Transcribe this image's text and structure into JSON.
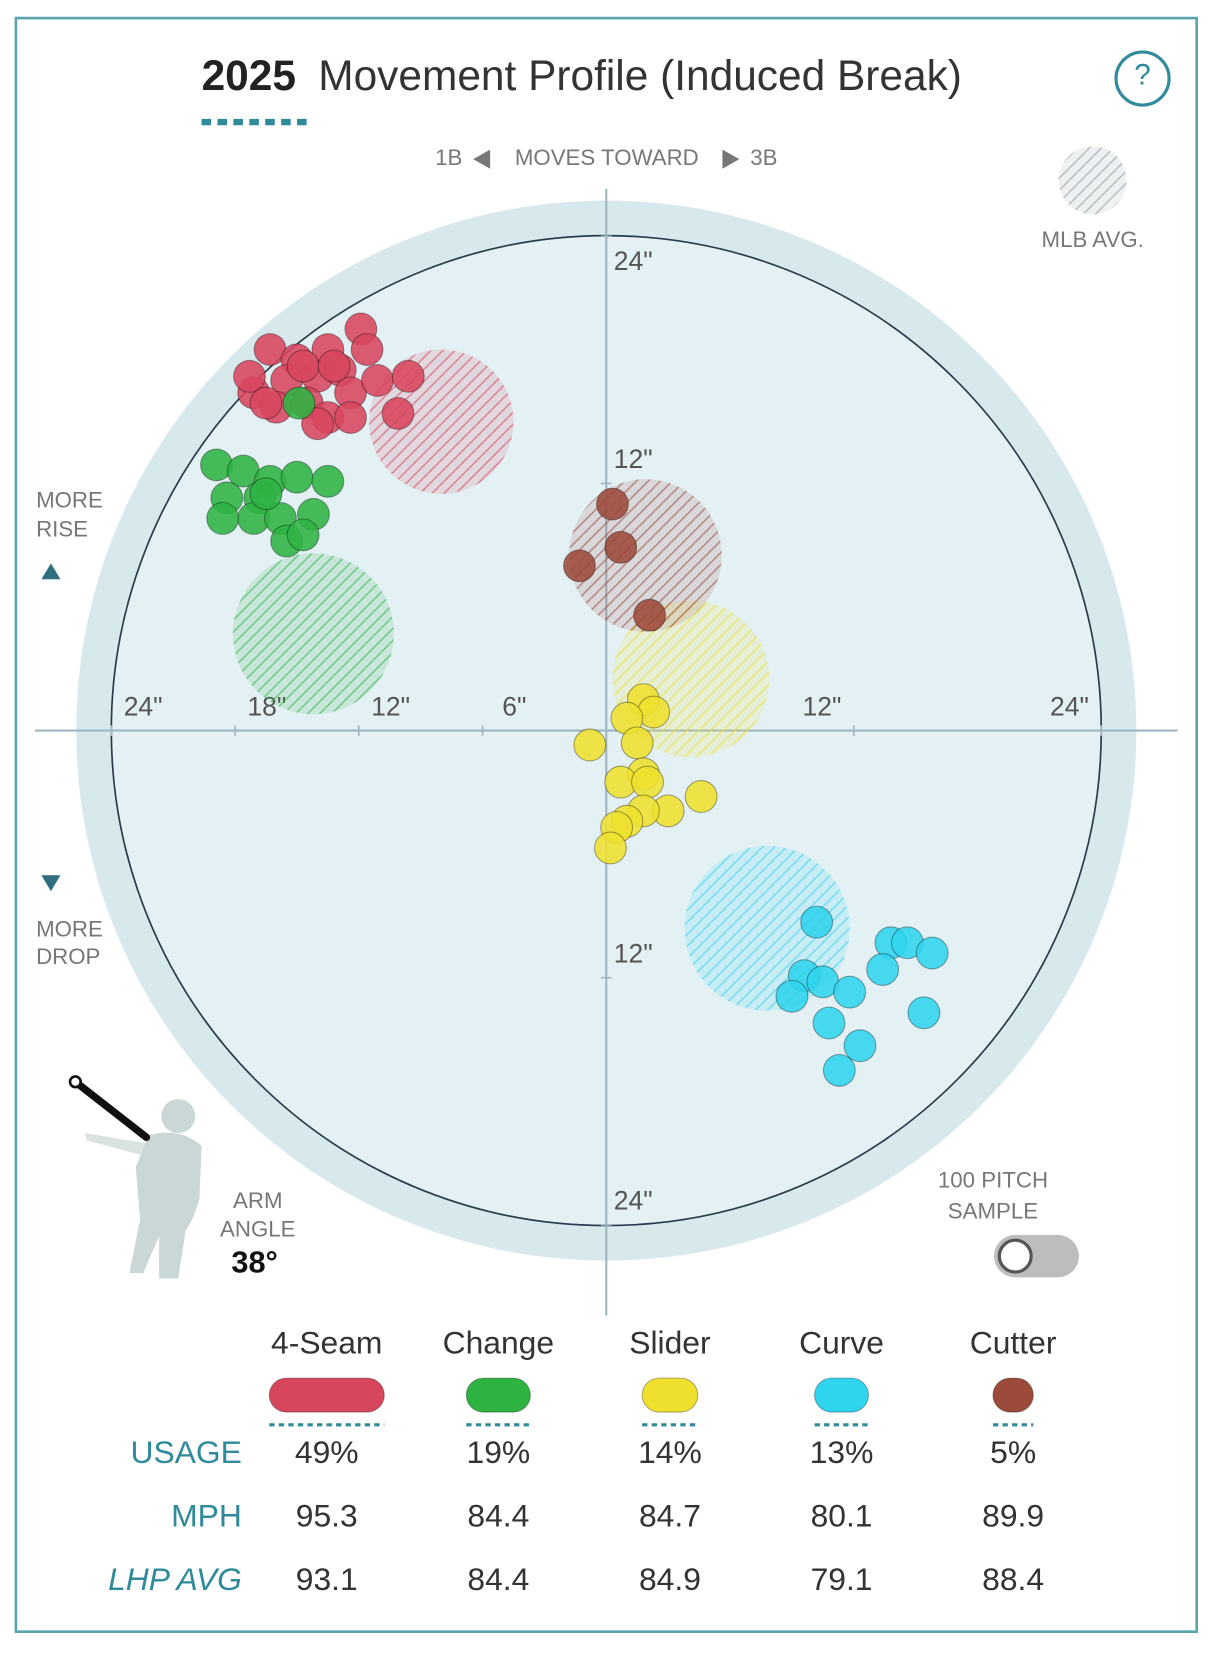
{
  "header": {
    "title_year": "2025",
    "title": "Movement Profile (Induced Break)",
    "help": "?"
  },
  "chart_data": {
    "type": "scatter",
    "direction_left": "1B",
    "direction_label": "MOVES TOWARD",
    "direction_right": "3B",
    "mlb_avg_label": "MLB AVG.",
    "rise_label": [
      "MORE",
      "RISE"
    ],
    "drop_label": [
      "MORE",
      "DROP"
    ],
    "xlim": [
      -27.7,
      27.7
    ],
    "ylim": [
      -28.4,
      26.3
    ],
    "field_radius": 25.7,
    "rings": [
      {
        "radius": 6,
        "dashed": true
      },
      {
        "radius": 12,
        "dashed": false
      },
      {
        "radius": 18,
        "dashed": true
      },
      {
        "radius": 24,
        "dashed": false
      }
    ],
    "xticks": [
      {
        "value": -24,
        "label": "24\""
      },
      {
        "value": -18,
        "label": "18\""
      },
      {
        "value": -12,
        "label": "12\""
      },
      {
        "value": -6,
        "label": "6\""
      },
      {
        "value": 12,
        "label": "12\""
      },
      {
        "value": 24,
        "label": "24\""
      }
    ],
    "yticks": [
      {
        "value": 24,
        "label": "24\""
      },
      {
        "value": 12,
        "label": "12\""
      },
      {
        "value": -12,
        "label": "12\""
      },
      {
        "value": -24,
        "label": "24\""
      }
    ],
    "series": [
      {
        "name": "4-Seam",
        "color": "#d8465e",
        "x": [
          -16.3,
          -15.0,
          -13.5,
          -11.9,
          -11.6,
          -14.0,
          -15.5,
          -17.1,
          -17.3,
          -16.0,
          -14.5,
          -12.9,
          -12.4,
          -13.5,
          -12.4,
          -11.1,
          -9.6,
          -10.1,
          -14.0,
          -16.5,
          -14.7,
          -13.2
        ],
        "y": [
          18.5,
          18.0,
          18.5,
          19.5,
          18.5,
          17.2,
          17.0,
          16.4,
          17.2,
          15.7,
          15.9,
          17.5,
          16.4,
          15.2,
          15.2,
          17.0,
          17.2,
          15.4,
          14.9,
          15.9,
          17.7,
          17.7
        ],
        "mlb_avg": {
          "x": -8.0,
          "y": 15.0,
          "r": 3.5
        }
      },
      {
        "name": "Change",
        "color": "#2db342",
        "x": [
          -18.9,
          -17.6,
          -16.3,
          -15.0,
          -13.5,
          -16.8,
          -18.4,
          -17.1,
          -15.8,
          -14.2,
          -18.6,
          -15.5,
          -14.7,
          -16.5,
          -14.9
        ],
        "y": [
          12.9,
          12.6,
          12.1,
          12.3,
          12.1,
          11.3,
          11.3,
          10.3,
          10.3,
          10.5,
          10.3,
          9.2,
          9.5,
          11.5,
          15.9
        ],
        "mlb_avg": {
          "x": -14.2,
          "y": 4.7,
          "r": 3.9
        }
      },
      {
        "name": "Slider",
        "color": "#efe02e",
        "x": [
          1.8,
          2.3,
          1.0,
          -0.8,
          1.5,
          1.8,
          0.7,
          2.0,
          4.6,
          3.0,
          1.8,
          1.0,
          0.5,
          0.2
        ],
        "y": [
          1.5,
          0.9,
          0.6,
          -0.7,
          -0.6,
          -2.1,
          -2.5,
          -2.5,
          -3.2,
          -3.9,
          -3.9,
          -4.4,
          -4.7,
          -5.7
        ],
        "mlb_avg": {
          "x": 4.1,
          "y": 2.5,
          "r": 3.8
        }
      },
      {
        "name": "Curve",
        "color": "#2fd4ee",
        "x": [
          10.2,
          13.8,
          14.6,
          15.8,
          13.4,
          9.6,
          10.5,
          9.0,
          11.8,
          15.4,
          10.8,
          12.3,
          11.3
        ],
        "y": [
          -9.3,
          -10.3,
          -10.3,
          -10.8,
          -11.6,
          -11.9,
          -12.2,
          -12.9,
          -12.7,
          -13.7,
          -14.2,
          -15.3,
          -16.5
        ],
        "mlb_avg": {
          "x": 7.8,
          "y": -9.6,
          "r": 4.0
        }
      },
      {
        "name": "Cutter",
        "color": "#9c4a3a",
        "x": [
          0.3,
          0.7,
          -1.3,
          2.1
        ],
        "y": [
          11.0,
          8.9,
          8.0,
          5.6
        ],
        "mlb_avg": {
          "x": 1.9,
          "y": 8.5,
          "r": 3.7
        }
      }
    ],
    "arm_angle": {
      "label": [
        "ARM",
        "ANGLE"
      ],
      "value": 38,
      "value_label": "38°"
    },
    "sample_toggle": [
      "100 PITCH",
      "SAMPLE"
    ]
  },
  "table": {
    "row_labels": [
      "USAGE",
      "MPH",
      "LHP AVG"
    ],
    "usage": [
      49,
      19,
      14,
      13,
      5
    ],
    "usage_labels": [
      "49%",
      "19%",
      "14%",
      "13%",
      "5%"
    ],
    "mph": [
      95.3,
      84.4,
      84.7,
      80.1,
      89.9
    ],
    "lhp_avg": [
      93.1,
      84.4,
      84.9,
      79.1,
      88.4
    ]
  }
}
